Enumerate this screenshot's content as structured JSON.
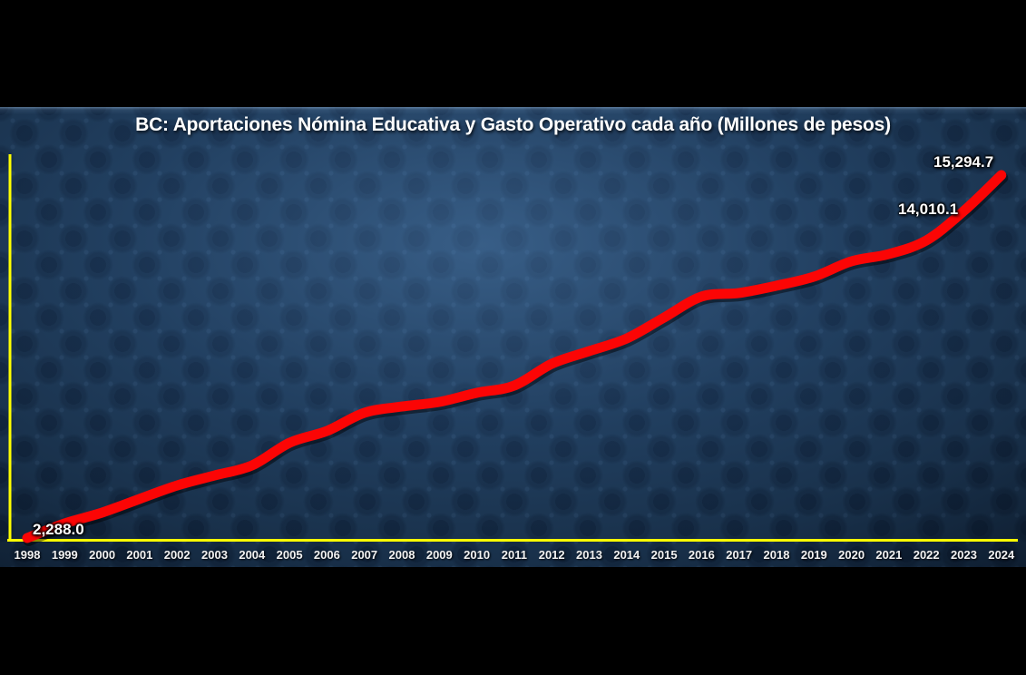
{
  "slide": {
    "title": "BC: Aportaciones Nómina Educativa y Gasto Operativo cada año (Millones de pesos)"
  },
  "chart_data": {
    "type": "line",
    "title": "BC: Aportaciones Nómina Educativa y Gasto Operativo cada año (Millones de pesos)",
    "x": [
      1998,
      1999,
      2000,
      2001,
      2002,
      2003,
      2004,
      2005,
      2006,
      2007,
      2008,
      2009,
      2010,
      2011,
      2012,
      2013,
      2014,
      2015,
      2016,
      2017,
      2018,
      2019,
      2020,
      2021,
      2022,
      2023,
      2024
    ],
    "x_tick_labels": [
      "1998",
      "1999",
      "2000",
      "2001",
      "2002",
      "2003",
      "2004",
      "2005",
      "2006",
      "2007",
      "2008",
      "2009",
      "2010",
      "2011",
      "2012",
      "2013",
      "2014",
      "2015",
      "2016",
      "2017",
      "2018",
      "2019",
      "2020",
      "2021",
      "2022",
      "2023",
      "2024"
    ],
    "series": [
      {
        "name": "Aportaciones Nómina Educativa y Gasto Operativo (Millones de pesos)",
        "values": [
          2288.0,
          2810,
          3200,
          3690,
          4170,
          4530,
          4890,
          5700,
          6125,
          6775,
          7000,
          7165,
          7490,
          7750,
          8530,
          8985,
          9440,
          10190,
          10940,
          11070,
          11330,
          11655,
          12205,
          12465,
          12955,
          14010.1,
          15294.7
        ]
      }
    ],
    "values_note": "Only 1998, 2023 and 2024 carry data labels in the image; intermediate values are estimated from the plotted line position.",
    "visible_point_labels": [
      {
        "year": 1998,
        "text": "2,288.0"
      },
      {
        "year": 2023,
        "text": "14,010.1"
      },
      {
        "year": 2024,
        "text": "15,294.7"
      }
    ],
    "xlabel": "",
    "ylabel": "",
    "ylim": [
      2100,
      16050
    ],
    "gridlines": false,
    "legend": "none",
    "y_axis_tick_labels": "none",
    "colors": {
      "line": "#fb0505",
      "axis": "#ffff00",
      "title_text": "#ffffff",
      "data_label_text": "#ffffff",
      "tick_text": "#f2f2f2",
      "slide_background": "#1d3854",
      "letterbox": "#000000"
    }
  }
}
